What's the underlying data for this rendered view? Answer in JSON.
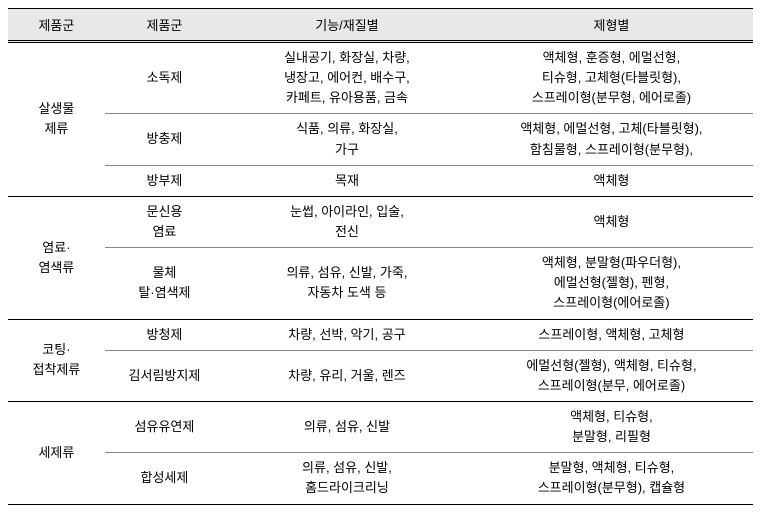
{
  "headers": [
    "제품군",
    "제품군",
    "기능/재질별",
    "제형별"
  ],
  "groups": [
    {
      "name": "살생물\n제류",
      "rows": [
        {
          "sub": "소독제",
          "func": "실내공기, 화장실, 차량,\n냉장고, 에어컨, 배수구,\n카페트, 유아용품, 금속",
          "form": "액체형, 훈증형, 에멀선형,\n티슈형, 고체형(타블릿형),\n스프레이형(분무형, 에어로졸)"
        },
        {
          "sub": "방충제",
          "func": "식품, 의류, 화장실,\n가구",
          "form": "액체형, 에멀선형, 고체(타블릿형),\n함침물형, 스프레이형(분무형),"
        },
        {
          "sub": "방부제",
          "func": "목재",
          "form": "액체형"
        }
      ]
    },
    {
      "name": "염료·\n염색류",
      "rows": [
        {
          "sub": "문신용\n염료",
          "func": "눈썹, 아이라인, 입술,\n전신",
          "form": "액체형"
        },
        {
          "sub": "물체\n탈·염색제",
          "func": "의류, 섬유, 신발, 가죽,\n자동차 도색 등",
          "form": "액체형, 분말형(파우더형),\n에멀선형(젤형), 펜형,\n스프레이형(에어로졸)"
        }
      ]
    },
    {
      "name": "코팅·\n접착제류",
      "rows": [
        {
          "sub": "방청제",
          "func": "차량, 선박, 악기, 공구",
          "form": "스프레이형, 액체형, 고체형"
        },
        {
          "sub": "김서림방지제",
          "func": "차량, 유리, 거울, 렌즈",
          "form": "에멀선형(젤형), 액체형, 티슈형,\n스프레이형(분무, 에어로졸)"
        }
      ]
    },
    {
      "name": "세제류",
      "rows": [
        {
          "sub": "섬유유연제",
          "func": "의류, 섬유, 신발",
          "form": "액체형, 티슈형,\n분말형, 리필형"
        },
        {
          "sub": "합성세제",
          "func": "의류, 섬유, 신발,\n홈드라이크리닝",
          "form": "분말형, 액체형, 티슈형,\n스프레이형(분무형), 캡슐형"
        }
      ]
    }
  ]
}
